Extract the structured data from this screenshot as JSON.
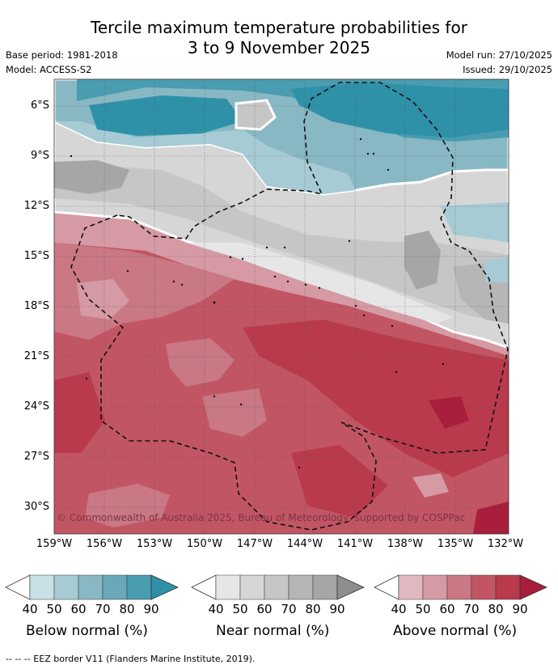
{
  "title": {
    "line1": "Tercile maximum temperature probabilities for",
    "line2": "3 to 9 November 2025"
  },
  "meta": {
    "base_period": "Base period: 1981-2018",
    "model": "Model: ACCESS-S2",
    "model_run": "Model run: 27/10/2025",
    "issued": "Issued: 29/10/2025"
  },
  "map": {
    "lat_labels": [
      "6°S",
      "9°S",
      "12°S",
      "15°S",
      "18°S",
      "21°S",
      "24°S",
      "27°S",
      "30°S"
    ],
    "lon_labels": [
      "159°W",
      "156°W",
      "153°W",
      "150°W",
      "147°W",
      "144°W",
      "141°W",
      "138°W",
      "135°W",
      "132°W"
    ],
    "copyright": "© Commonwealth of Australia 2025, Bureau of Meteorology, supported by COSPPac",
    "colors": {
      "below": [
        "#ffffff",
        "#c7e0e6",
        "#a7cbd4",
        "#88b8c4",
        "#68a8b8",
        "#4a9db0",
        "#2e91a8"
      ],
      "near": [
        "#ffffff",
        "#e6e6e6",
        "#d6d6d6",
        "#c6c6c6",
        "#b6b6b6",
        "#a6a6a6",
        "#8e8e8e"
      ],
      "above": [
        "#ffffff",
        "#e2b8c0",
        "#d59aa4",
        "#c97884",
        "#c25564",
        "#b83a4c",
        "#a81e3c"
      ]
    }
  },
  "legend": [
    {
      "name": "Below normal (%)",
      "ticks": [
        "40",
        "50",
        "60",
        "70",
        "80",
        "90"
      ]
    },
    {
      "name": "Near normal (%)",
      "ticks": [
        "40",
        "50",
        "60",
        "70",
        "80",
        "90"
      ]
    },
    {
      "name": "Above normal (%)",
      "ticks": [
        "40",
        "50",
        "60",
        "70",
        "80",
        "90"
      ]
    }
  ],
  "footer": "--  --  -- EEZ border V11 (Flanders Marine Institute, 2019)."
}
